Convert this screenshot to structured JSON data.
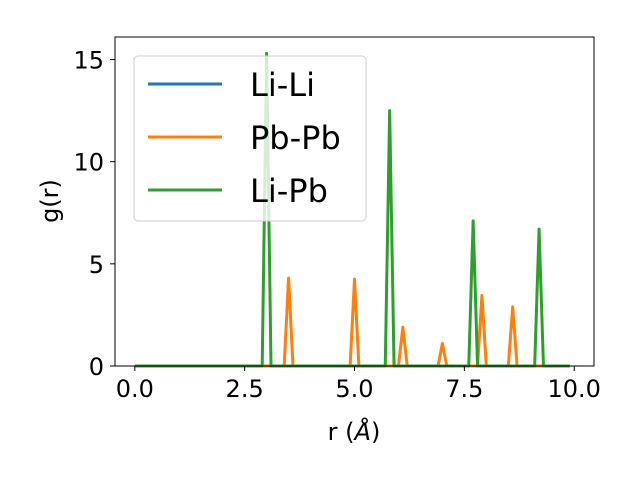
{
  "chart_data": {
    "type": "line",
    "xlabel_prefix": "r (",
    "xlabel_symbol": "Å",
    "xlabel_suffix": ")",
    "ylabel": "g(r)",
    "xlim": [
      -0.45,
      10.45
    ],
    "ylim": [
      0,
      16.1
    ],
    "xticks": [
      0.0,
      2.5,
      5.0,
      7.5,
      10.0
    ],
    "xtick_labels": [
      "0.0",
      "2.5",
      "5.0",
      "7.5",
      "10.0"
    ],
    "yticks": [
      0,
      5,
      10,
      15
    ],
    "ytick_labels": [
      "0",
      "5",
      "10",
      "15"
    ],
    "grid": false,
    "legend_position": "top-left",
    "series": [
      {
        "name": "Li-Li",
        "color": "#1f77b4",
        "x": [
          0.0,
          9.9
        ],
        "y": [
          0.0,
          0.0
        ]
      },
      {
        "name": "Pb-Pb",
        "color": "#ff7f0e",
        "x": [
          0.0,
          3.4,
          3.5,
          3.6,
          4.9,
          5.0,
          5.1,
          6.0,
          6.1,
          6.2,
          6.9,
          7.0,
          7.1,
          7.8,
          7.9,
          8.0,
          8.5,
          8.6,
          8.7,
          9.9
        ],
        "y": [
          0.0,
          0.0,
          4.3,
          0.0,
          0.0,
          4.25,
          0.0,
          0.0,
          1.9,
          0.0,
          0.0,
          1.1,
          0.0,
          0.0,
          3.45,
          0.0,
          0.0,
          2.9,
          0.0,
          0.0
        ]
      },
      {
        "name": "Li-Pb",
        "color": "#2ca02c",
        "x": [
          0.0,
          2.9,
          3.0,
          3.1,
          5.7,
          5.8,
          5.9,
          7.6,
          7.7,
          7.8,
          9.1,
          9.2,
          9.3,
          9.9
        ],
        "y": [
          0.0,
          0.0,
          15.3,
          0.0,
          0.0,
          12.5,
          0.0,
          0.0,
          7.1,
          0.0,
          0.0,
          6.7,
          0.0,
          0.0
        ]
      }
    ]
  }
}
